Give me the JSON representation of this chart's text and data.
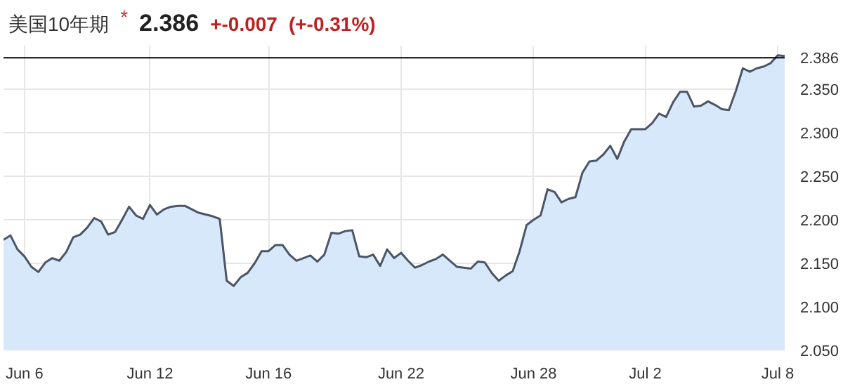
{
  "chart_data": {
    "type": "area",
    "title": "美国10年期",
    "annotations": [
      "*",
      "2.386",
      "+-0.007",
      "(+-0.31%)"
    ],
    "categories": [
      null,
      null,
      null,
      "Jun 6",
      null,
      null,
      null,
      null,
      null,
      null,
      null,
      null,
      null,
      null,
      null,
      null,
      null,
      null,
      null,
      null,
      null,
      "Jun 12",
      null,
      null,
      null,
      null,
      null,
      null,
      null,
      null,
      null,
      null,
      null,
      null,
      null,
      null,
      null,
      null,
      "Jun 16",
      null,
      null,
      null,
      null,
      null,
      null,
      null,
      null,
      null,
      null,
      null,
      null,
      null,
      null,
      null,
      null,
      null,
      null,
      "Jun 22",
      null,
      null,
      null,
      null,
      null,
      null,
      null,
      null,
      null,
      null,
      null,
      null,
      null,
      null,
      null,
      null,
      null,
      null,
      "Jun 28",
      null,
      null,
      null,
      null,
      null,
      null,
      null,
      null,
      null,
      null,
      null,
      null,
      null,
      null,
      null,
      "Jul 2",
      null,
      null,
      null,
      null,
      null,
      null,
      null,
      null,
      null,
      null,
      null,
      null,
      null,
      null,
      null,
      null,
      null,
      null,
      "Jul 8",
      null
    ],
    "series": [
      {
        "color": "#4a5565",
        "values": [
          2.177,
          2.182,
          2.166,
          2.158,
          2.146,
          2.14,
          2.151,
          2.156,
          2.153,
          2.163,
          2.18,
          2.183,
          2.191,
          2.202,
          2.198,
          2.183,
          2.186,
          2.2,
          2.215,
          2.205,
          2.201,
          2.217,
          2.206,
          2.212,
          2.215,
          2.216,
          2.216,
          2.212,
          2.208,
          2.206,
          2.204,
          2.201,
          2.13,
          2.124,
          2.134,
          2.139,
          2.15,
          2.164,
          2.164,
          2.171,
          2.171,
          2.16,
          2.153,
          2.156,
          2.159,
          2.152,
          2.16,
          2.185,
          2.184,
          2.187,
          2.188,
          2.158,
          2.157,
          2.16,
          2.147,
          2.166,
          2.156,
          2.162,
          2.153,
          2.145,
          2.148,
          2.152,
          2.155,
          2.16,
          2.153,
          2.146,
          2.145,
          2.144,
          2.152,
          2.151,
          2.139,
          2.13,
          2.136,
          2.141,
          2.164,
          2.194,
          2.2,
          2.205,
          2.235,
          2.232,
          2.22,
          2.224,
          2.226,
          2.254,
          2.267,
          2.268,
          2.275,
          2.285,
          2.27,
          2.29,
          2.304,
          2.304,
          2.304,
          2.311,
          2.322,
          2.318,
          2.335,
          2.347,
          2.347,
          2.33,
          2.331,
          2.336,
          2.332,
          2.327,
          2.326,
          2.348,
          2.374,
          2.37,
          2.374,
          2.376,
          2.38,
          2.389,
          2.388
        ]
      }
    ],
    "ylim": [
      2.05,
      2.4
    ],
    "yticks": [
      {
        "value": 2.05,
        "label": "2.050"
      },
      {
        "value": 2.1,
        "label": "2.100"
      },
      {
        "value": 2.15,
        "label": "2.150"
      },
      {
        "value": 2.2,
        "label": "2.200"
      },
      {
        "value": 2.25,
        "label": "2.250"
      },
      {
        "value": 2.3,
        "label": "2.300"
      },
      {
        "value": 2.35,
        "label": "2.350"
      }
    ],
    "ref_lines": [
      {
        "axis": "y",
        "value": 2.386,
        "label": "2.386",
        "color": "#000000"
      }
    ],
    "grid": true
  }
}
